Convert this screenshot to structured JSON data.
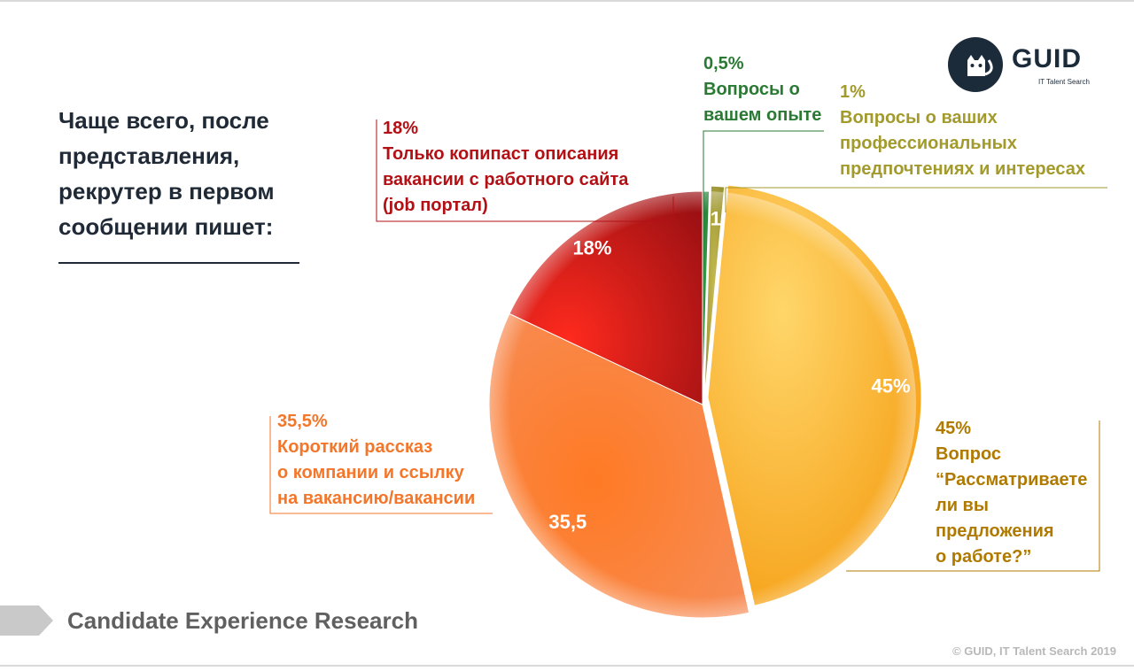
{
  "heading": "Чаще всего, после представления, рекрутер в первом сообщении пишет:",
  "logo": {
    "word": "GUID",
    "sub": "IT Talent Search"
  },
  "footer": {
    "title": "Candidate Experience Research",
    "copyright": "© GUID, IT Talent Search 2019"
  },
  "colors": {
    "job_portal": "#c0161b",
    "experience": "#2a7a33",
    "preferences": "#a39a2c",
    "offer": "#f7a81b",
    "story": "#f3762a"
  },
  "chart_data": {
    "type": "pie",
    "slices": [
      {
        "key": "experience",
        "value": 0.5,
        "inner_label": "",
        "pct": "0,5%",
        "text": [
          "Вопросы о",
          "вашем опыте"
        ]
      },
      {
        "key": "preferences",
        "value": 1,
        "inner_label": "1",
        "pct": "1%",
        "text": [
          "Вопросы о ваших",
          "профессиональных",
          "предпочтениях и интересах"
        ]
      },
      {
        "key": "offer",
        "value": 45,
        "inner_label": "45%",
        "pct": "45%",
        "text": [
          "Вопрос",
          "“Рассматриваете",
          "ли вы",
          "предложения",
          "о работе?”"
        ]
      },
      {
        "key": "story",
        "value": 35.5,
        "inner_label": "35,5",
        "pct": "35,5%",
        "text": [
          "Короткий рассказ",
          "о компании и ссылку",
          "на вакансию/вакансии"
        ]
      },
      {
        "key": "job_portal",
        "value": 18,
        "inner_label": "18%",
        "pct": "18%",
        "text": [
          "Только копипаст описания",
          "вакансии с работного сайта",
          "(job портал)"
        ]
      }
    ]
  }
}
